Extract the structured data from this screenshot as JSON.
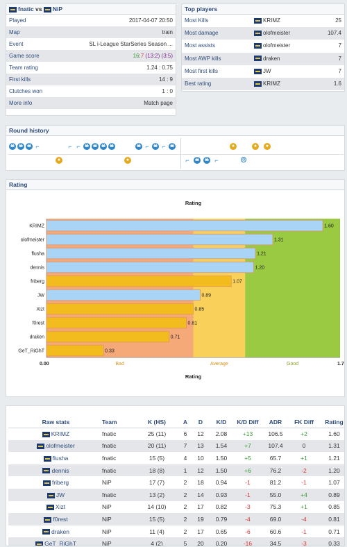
{
  "match": {
    "team1": "fnatic",
    "team2": "NiP",
    "rows": [
      {
        "label": "Played",
        "value": "2017-04-07 20:50"
      },
      {
        "label": "Map",
        "value": "train"
      },
      {
        "label": "Event",
        "value": "SL i-League StarSeries Season ..."
      },
      {
        "label": "Game score",
        "value": ""
      },
      {
        "label": "Team rating",
        "value": "1.24 : 0.75"
      },
      {
        "label": "First kills",
        "value": "14 : 9"
      },
      {
        "label": "Clutches won",
        "value": "1 : 0"
      },
      {
        "label": "More info",
        "value": "Match page"
      }
    ],
    "score": {
      "total": "16:7",
      "half1": "13:2",
      "half2": "3:5",
      "color_total_1": "#3a9a3a",
      "color_total_2": "#d33",
      "color_half": "#7a2a8a"
    }
  },
  "top_players": {
    "title": "Top players",
    "rows": [
      {
        "label": "Most Kills",
        "player": "KRIMZ",
        "value": "25"
      },
      {
        "label": "Most damage",
        "player": "olofmeister",
        "value": "107.4"
      },
      {
        "label": "Most assists",
        "player": "olofmeister",
        "value": "7"
      },
      {
        "label": "Most AWP kills",
        "player": "draken",
        "value": "7"
      },
      {
        "label": "Most first kills",
        "player": "JW",
        "value": "7"
      },
      {
        "label": "Best rating",
        "player": "KRIMZ",
        "value": "1.6"
      }
    ]
  },
  "round_history": {
    "title": "Round history"
  },
  "rating_panel": {
    "title": "Rating"
  },
  "chart_data": {
    "type": "bar",
    "orientation": "horizontal",
    "title": "Rating",
    "xlabel": "Rating",
    "xlim": [
      0,
      1.7
    ],
    "x_ticks": [
      "0.00",
      "1.70"
    ],
    "categories": [
      "KRIMZ",
      "olofmeister",
      "flusha",
      "dennis",
      "friberg",
      "JW",
      "Xizt",
      "f0rest",
      "draken",
      "GeT_RiGhT"
    ],
    "values": [
      1.6,
      1.31,
      1.21,
      1.2,
      1.07,
      0.89,
      0.85,
      0.81,
      0.71,
      0.33
    ],
    "value_labels": [
      "1.60",
      "1.31",
      "1.21",
      "1.20",
      "1.07",
      "0.89",
      "0.85",
      "0.81",
      "0.71",
      "0.33"
    ],
    "teams": [
      "fnatic",
      "fnatic",
      "fnatic",
      "fnatic",
      "NiP",
      "fnatic",
      "NiP",
      "NiP",
      "NiP",
      "NiP"
    ],
    "team_colors": {
      "fnatic": "#aad4f5",
      "NiP": "#f2bc1e"
    },
    "bands": [
      {
        "label": "Bad",
        "from": 0,
        "to": 0.85,
        "color": "#f5a878"
      },
      {
        "label": "Average",
        "from": 0.85,
        "to": 1.15,
        "color": "#f9d15a"
      },
      {
        "label": "Good",
        "from": 1.15,
        "to": 1.7,
        "color": "#9ac942"
      }
    ]
  },
  "raw_stats": {
    "headers": [
      "Raw stats",
      "Team",
      "K (HS)",
      "A",
      "D",
      "K/D",
      "K/D Diff",
      "ADR",
      "FK Diff",
      "Rating"
    ],
    "rows": [
      {
        "player": "KRIMZ",
        "team": "fnatic",
        "k": "25 (11)",
        "a": "6",
        "d": "12",
        "kd": "2.08",
        "kdd": "+13",
        "adr": "106.5",
        "fkd": "+2",
        "rating": "1.60"
      },
      {
        "player": "olofmeister",
        "team": "fnatic",
        "k": "20 (11)",
        "a": "7",
        "d": "13",
        "kd": "1.54",
        "kdd": "+7",
        "adr": "107.4",
        "fkd": "0",
        "rating": "1.31"
      },
      {
        "player": "flusha",
        "team": "fnatic",
        "k": "15 (5)",
        "a": "4",
        "d": "10",
        "kd": "1.50",
        "kdd": "+5",
        "adr": "65.7",
        "fkd": "+1",
        "rating": "1.21"
      },
      {
        "player": "dennis",
        "team": "fnatic",
        "k": "18 (8)",
        "a": "1",
        "d": "12",
        "kd": "1.50",
        "kdd": "+6",
        "adr": "76.2",
        "fkd": "-2",
        "rating": "1.20"
      },
      {
        "player": "friberg",
        "team": "NiP",
        "k": "17 (7)",
        "a": "2",
        "d": "18",
        "kd": "0.94",
        "kdd": "-1",
        "adr": "81.2",
        "fkd": "-1",
        "rating": "1.07"
      },
      {
        "player": "JW",
        "team": "fnatic",
        "k": "13 (2)",
        "a": "2",
        "d": "14",
        "kd": "0.93",
        "kdd": "-1",
        "adr": "55.0",
        "fkd": "+4",
        "rating": "0.89"
      },
      {
        "player": "Xizt",
        "team": "NiP",
        "k": "14 (10)",
        "a": "2",
        "d": "17",
        "kd": "0.82",
        "kdd": "-3",
        "adr": "75.3",
        "fkd": "+1",
        "rating": "0.85"
      },
      {
        "player": "f0rest",
        "team": "NiP",
        "k": "15 (5)",
        "a": "2",
        "d": "19",
        "kd": "0.79",
        "kdd": "-4",
        "adr": "69.0",
        "fkd": "-4",
        "rating": "0.81"
      },
      {
        "player": "draken",
        "team": "NiP",
        "k": "11 (4)",
        "a": "2",
        "d": "17",
        "kd": "0.65",
        "kdd": "-6",
        "adr": "60.6",
        "fkd": "-1",
        "rating": "0.71"
      },
      {
        "player": "GeT_RiGhT",
        "team": "NiP",
        "k": "4 (2)",
        "a": "5",
        "d": "20",
        "kd": "0.20",
        "kdd": "-16",
        "adr": "34.5",
        "fkd": "-3",
        "rating": "0.33"
      }
    ]
  }
}
